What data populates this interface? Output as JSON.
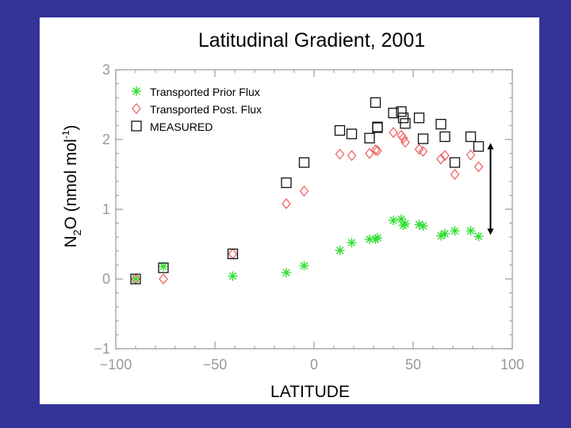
{
  "chart_data": {
    "type": "scatter",
    "title": "Latitudinal Gradient, 2001",
    "xlabel": "LATITUDE",
    "ylabel": {
      "main": "N",
      "sub": "2",
      "rest": "O  (nmol mol",
      "sup": "-1",
      "close": ")"
    },
    "xlim": [
      -100,
      100
    ],
    "ylim": [
      -1,
      3
    ],
    "xticks": [
      -100,
      -50,
      0,
      50,
      100
    ],
    "yticks": [
      -1,
      0,
      1,
      2,
      3
    ],
    "xtick_labels": [
      "−100",
      "−50",
      "0",
      "50",
      "100"
    ],
    "ytick_labels": [
      "−1",
      "0",
      "1",
      "2",
      "3"
    ],
    "grid": false,
    "legend_position": "top-left",
    "series": [
      {
        "name": "Transported Prior Flux",
        "marker": "asterisk",
        "color": "#33dd33",
        "points": [
          [
            -90,
            0.0
          ],
          [
            -76,
            0.18
          ],
          [
            -41,
            0.04
          ],
          [
            -14,
            0.09
          ],
          [
            -5,
            0.19
          ],
          [
            13,
            0.41
          ],
          [
            19,
            0.52
          ],
          [
            28,
            0.57
          ],
          [
            31,
            0.57
          ],
          [
            32,
            0.59
          ],
          [
            40,
            0.84
          ],
          [
            44,
            0.86
          ],
          [
            45,
            0.77
          ],
          [
            46,
            0.79
          ],
          [
            53,
            0.78
          ],
          [
            55,
            0.76
          ],
          [
            64,
            0.62
          ],
          [
            66,
            0.65
          ],
          [
            71,
            0.69
          ],
          [
            79,
            0.69
          ],
          [
            83,
            0.61
          ]
        ]
      },
      {
        "name": "Transported Post. Flux",
        "marker": "diamond",
        "color": "#ee6666",
        "points": [
          [
            -90,
            0.0
          ],
          [
            -76,
            0.0
          ],
          [
            -41,
            0.36
          ],
          [
            -14,
            1.08
          ],
          [
            -5,
            1.26
          ],
          [
            13,
            1.79
          ],
          [
            19,
            1.77
          ],
          [
            28,
            1.8
          ],
          [
            31,
            1.85
          ],
          [
            32,
            1.84
          ],
          [
            40,
            2.1
          ],
          [
            44,
            2.06
          ],
          [
            45,
            2.02
          ],
          [
            46,
            1.96
          ],
          [
            53,
            1.86
          ],
          [
            55,
            1.83
          ],
          [
            64,
            1.72
          ],
          [
            66,
            1.77
          ],
          [
            71,
            1.5
          ],
          [
            79,
            1.78
          ],
          [
            83,
            1.61
          ]
        ]
      },
      {
        "name": "MEASURED",
        "marker": "square",
        "color": "#111111",
        "points": [
          [
            -90,
            0.0
          ],
          [
            -76,
            0.16
          ],
          [
            -41,
            0.36
          ],
          [
            -14,
            1.38
          ],
          [
            -5,
            1.67
          ],
          [
            13,
            2.13
          ],
          [
            19,
            2.08
          ],
          [
            28,
            2.02
          ],
          [
            31,
            2.53
          ],
          [
            32,
            2.17
          ],
          [
            32,
            2.18
          ],
          [
            40,
            2.38
          ],
          [
            44,
            2.4
          ],
          [
            45,
            2.31
          ],
          [
            46,
            2.23
          ],
          [
            53,
            2.31
          ],
          [
            55,
            2.01
          ],
          [
            64,
            2.22
          ],
          [
            66,
            2.04
          ],
          [
            71,
            1.67
          ],
          [
            79,
            2.04
          ],
          [
            83,
            1.9
          ]
        ]
      }
    ],
    "annotations": [
      {
        "type": "double-arrow",
        "x": 89,
        "y_from": 0.63,
        "y_to": 1.95,
        "color": "#000000"
      }
    ]
  }
}
